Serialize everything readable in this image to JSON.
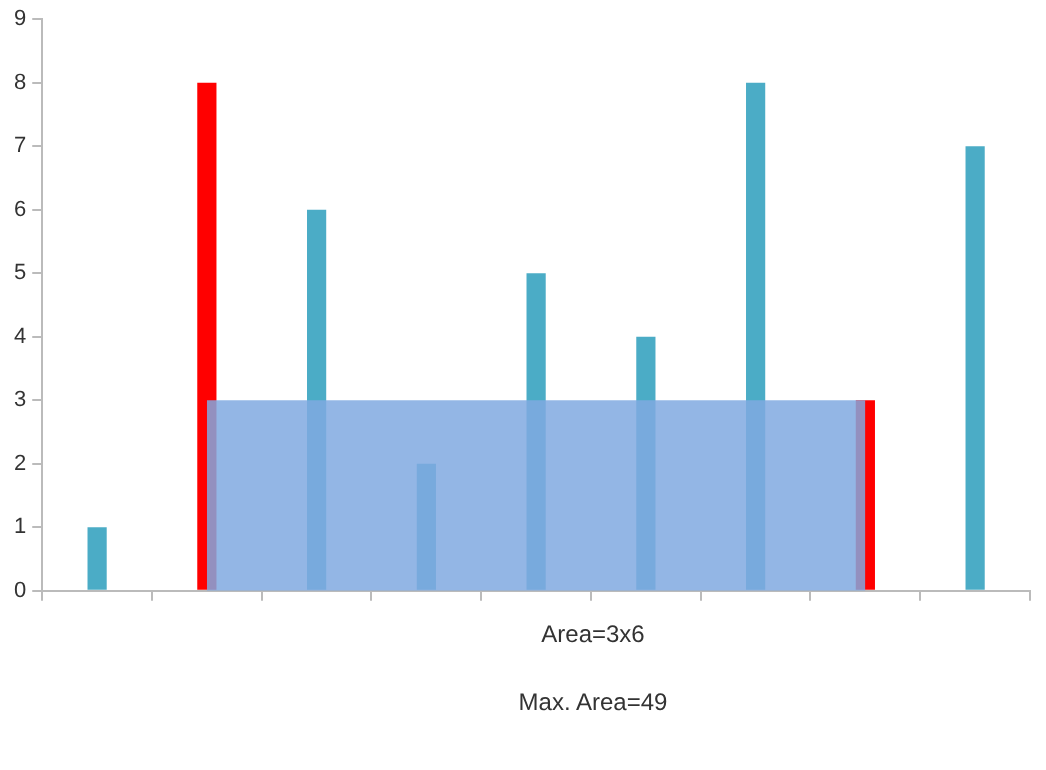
{
  "chart_data": {
    "type": "bar",
    "categories": [
      null,
      null,
      null,
      null,
      null,
      null,
      null,
      null,
      null
    ],
    "series": [
      {
        "colors": [
          "#4bacc6",
          "#ff0000",
          "#4bacc6",
          "#4bacc6",
          "#4bacc6",
          "#4bacc6",
          "#4bacc6",
          "#ff0000",
          "#4bacc6"
        ],
        "values": [
          1,
          8,
          6,
          2,
          5,
          4,
          8,
          3,
          7
        ]
      },
      {
        "type": "area",
        "color": "#80a9e0",
        "values": [
          null,
          3,
          3,
          3,
          3,
          3,
          3,
          3,
          null
        ]
      }
    ],
    "ylim": [
      0,
      9
    ],
    "yticks": [
      0,
      1,
      2,
      3,
      4,
      5,
      6,
      7,
      8,
      9
    ],
    "grid": false,
    "legend": false,
    "tick_labels": "y",
    "annotations": [
      "Area=3x6",
      "Max. Area=49"
    ]
  }
}
